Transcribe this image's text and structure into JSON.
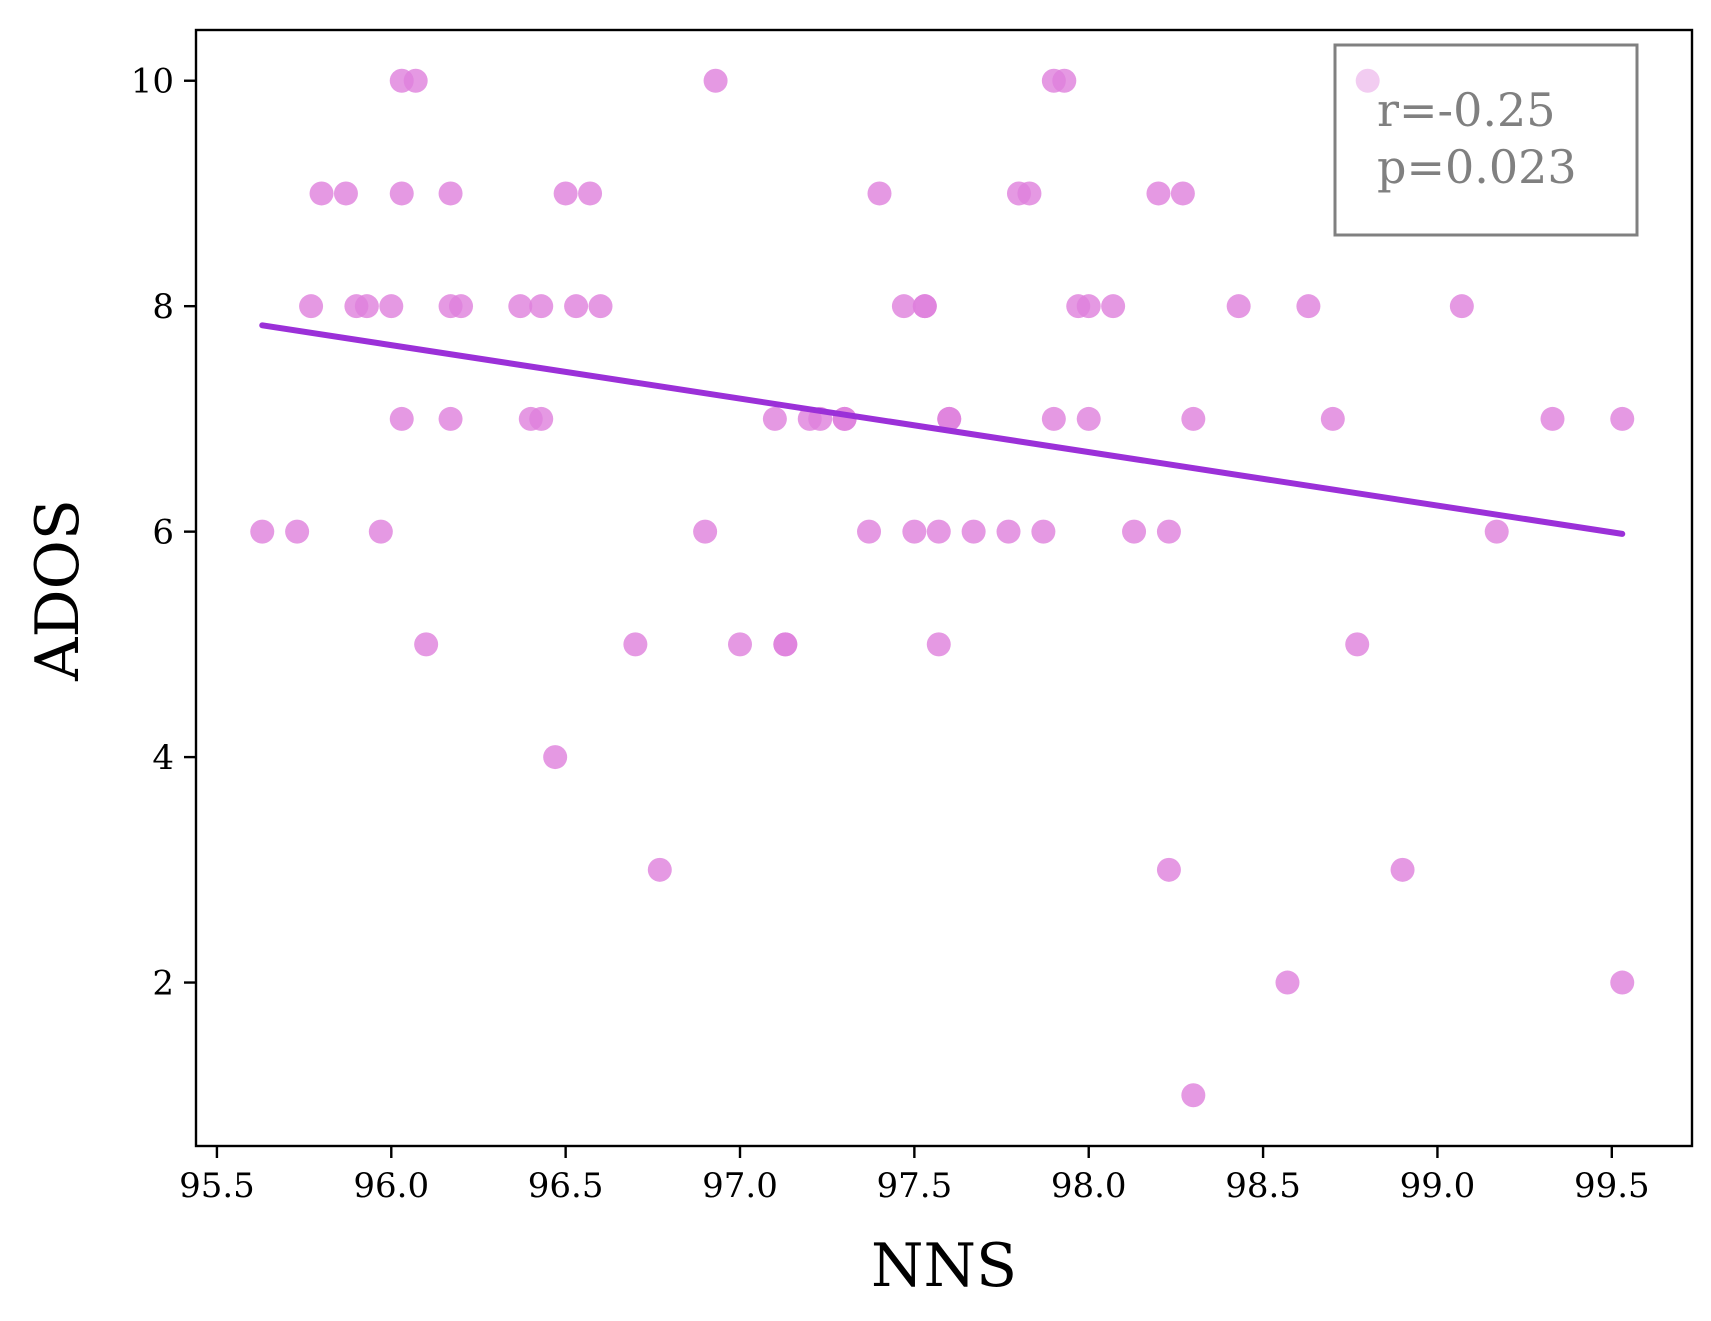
{
  "chart_data": {
    "type": "scatter",
    "xlabel": "NNS",
    "ylabel": "ADOS",
    "xlim": [
      95.44,
      99.73
    ],
    "ylim": [
      0.55,
      10.45
    ],
    "x_ticks": [
      "95.5",
      "96.0",
      "96.5",
      "97.0",
      "97.5",
      "98.0",
      "98.5",
      "99.0",
      "99.5"
    ],
    "y_ticks": [
      "2",
      "4",
      "6",
      "8",
      "10"
    ],
    "grid": false,
    "point_color": "#de7fdc",
    "line_color": "#9b30d8",
    "annotation": {
      "r": "r=-0.25",
      "p": "p=0.023",
      "placement": "top-right"
    },
    "regression": {
      "x": [
        95.63,
        99.53
      ],
      "y": [
        7.83,
        5.98
      ]
    },
    "points": [
      [
        95.63,
        6
      ],
      [
        95.73,
        6
      ],
      [
        95.77,
        8
      ],
      [
        95.8,
        9
      ],
      [
        95.87,
        9
      ],
      [
        95.9,
        8
      ],
      [
        95.93,
        8
      ],
      [
        95.97,
        6
      ],
      [
        96.0,
        8
      ],
      [
        96.03,
        10
      ],
      [
        96.07,
        10
      ],
      [
        96.03,
        9
      ],
      [
        96.03,
        7
      ],
      [
        96.1,
        5
      ],
      [
        96.17,
        9
      ],
      [
        96.17,
        8
      ],
      [
        96.2,
        8
      ],
      [
        96.17,
        7
      ],
      [
        96.37,
        8
      ],
      [
        96.43,
        8
      ],
      [
        96.4,
        7
      ],
      [
        96.43,
        7
      ],
      [
        96.47,
        4
      ],
      [
        96.5,
        9
      ],
      [
        96.57,
        9
      ],
      [
        96.53,
        8
      ],
      [
        96.6,
        8
      ],
      [
        96.7,
        5
      ],
      [
        96.77,
        3
      ],
      [
        96.9,
        6
      ],
      [
        96.93,
        10
      ],
      [
        97.0,
        5
      ],
      [
        97.1,
        7
      ],
      [
        97.13,
        5
      ],
      [
        97.13,
        5
      ],
      [
        97.2,
        7
      ],
      [
        97.23,
        7
      ],
      [
        97.3,
        7
      ],
      [
        97.3,
        7
      ],
      [
        97.37,
        6
      ],
      [
        97.4,
        9
      ],
      [
        97.47,
        8
      ],
      [
        97.5,
        6
      ],
      [
        97.53,
        8
      ],
      [
        97.53,
        8
      ],
      [
        97.57,
        6
      ],
      [
        97.57,
        5
      ],
      [
        97.6,
        7
      ],
      [
        97.6,
        7
      ],
      [
        97.67,
        6
      ],
      [
        97.77,
        6
      ],
      [
        97.8,
        9
      ],
      [
        97.83,
        9
      ],
      [
        97.87,
        6
      ],
      [
        97.9,
        10
      ],
      [
        97.93,
        10
      ],
      [
        97.9,
        7
      ],
      [
        97.97,
        8
      ],
      [
        98.0,
        8
      ],
      [
        98.0,
        7
      ],
      [
        98.07,
        8
      ],
      [
        98.13,
        6
      ],
      [
        98.2,
        9
      ],
      [
        98.23,
        6
      ],
      [
        98.23,
        3
      ],
      [
        98.27,
        9
      ],
      [
        98.3,
        7
      ],
      [
        98.3,
        1
      ],
      [
        98.43,
        8
      ],
      [
        98.57,
        2
      ],
      [
        98.63,
        8
      ],
      [
        98.7,
        7
      ],
      [
        98.77,
        5
      ],
      [
        98.8,
        10
      ],
      [
        98.9,
        3
      ],
      [
        99.07,
        8
      ],
      [
        99.17,
        6
      ],
      [
        99.33,
        7
      ],
      [
        99.53,
        7
      ],
      [
        99.53,
        2
      ]
    ]
  }
}
